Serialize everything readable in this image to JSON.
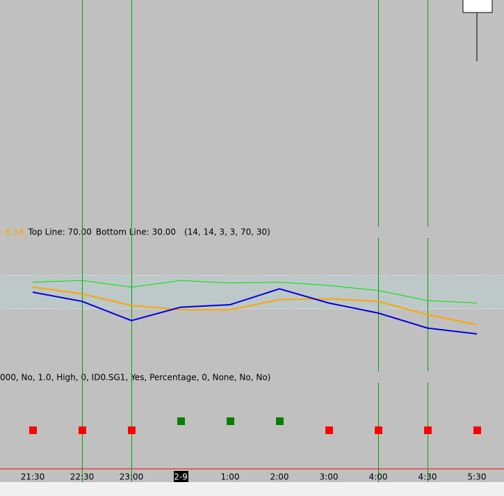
{
  "chart_data": {
    "type": "line",
    "categories": [
      "21:30",
      "22:30",
      "23:00",
      "2-9",
      "1:00",
      "2:00",
      "3:00",
      "4:00",
      "4:30",
      "5:30"
    ],
    "date_label_index": 3,
    "value_prefix": ": 6.18",
    "levels": [
      {
        "value": 70,
        "label": "Top Line: 70.00"
      },
      {
        "value": 30,
        "label": "Bottom Line: 30.00"
      }
    ],
    "params": "(14, 14, 3, 3, 70, 30)",
    "ylim": [
      0,
      100
    ],
    "series": [
      {
        "color": "#00e000",
        "values": [
          62,
          64,
          56,
          64,
          61,
          62,
          58,
          52,
          40,
          37
        ]
      },
      {
        "color": "#ffa500",
        "values": [
          56,
          48,
          34,
          29,
          29,
          41,
          42,
          39,
          23,
          11
        ]
      },
      {
        "color": "#0000e0",
        "values": [
          50,
          39,
          16,
          32,
          35,
          54,
          37,
          25,
          7,
          0
        ]
      }
    ],
    "highlight_x": [
      1,
      2,
      7,
      8
    ],
    "signal_text": "000, No, 1.0, High, 0, ID0.SG1, Yes, Percentage, 0, None, No, No)",
    "signal_colors": [
      "#ff0000",
      "#ff0000",
      "#ff0000",
      "#008000",
      "#008000",
      "#008000",
      "#ff0000",
      "#ff0000",
      "#ff0000",
      "#ff0000"
    ]
  }
}
